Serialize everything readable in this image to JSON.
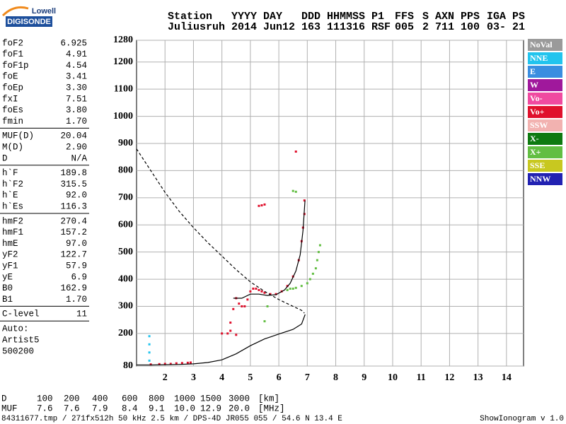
{
  "logo": {
    "line1": "Lowell",
    "line2": "DIGISONDE"
  },
  "header": {
    "rows": [
      [
        "Station",
        "YYYY",
        "DAY",
        "DDD",
        "HHMMSS",
        "P1",
        "FFS",
        "S",
        "AXN",
        "PPS",
        "IGA",
        "PS"
      ],
      [
        "Juliusruh",
        "2014",
        "Jun12",
        "163",
        "111316",
        "RSF",
        "005",
        "2",
        "711",
        "100",
        "03-",
        "21"
      ]
    ]
  },
  "params": {
    "groups": [
      [
        [
          "foF2",
          "6.925"
        ],
        [
          "foF1",
          "4.91"
        ],
        [
          "foF1p",
          "4.54"
        ],
        [
          "foE",
          "3.41"
        ],
        [
          "foEp",
          "3.30"
        ],
        [
          "fxI",
          "7.51"
        ],
        [
          "foEs",
          "3.80"
        ],
        [
          "fmin",
          "1.70"
        ]
      ],
      [
        [
          "MUF(D)",
          "20.04"
        ],
        [
          "M(D)",
          "2.90"
        ],
        [
          "D",
          "N/A"
        ]
      ],
      [
        [
          "h`F",
          "189.8"
        ],
        [
          "h`F2",
          "315.5"
        ],
        [
          "h`E",
          "92.0"
        ],
        [
          "h`Es",
          "116.3"
        ]
      ],
      [
        [
          "hmF2",
          "270.4"
        ],
        [
          "hmF1",
          "157.2"
        ],
        [
          "hmE",
          "97.0"
        ],
        [
          "yF2",
          "122.7"
        ],
        [
          "yF1",
          "57.9"
        ],
        [
          "yE",
          "6.9"
        ],
        [
          "B0",
          "162.9"
        ],
        [
          "B1",
          "1.70"
        ]
      ],
      [
        [
          "C-level",
          "11"
        ]
      ]
    ],
    "auto": [
      "Auto:",
      "Artist5",
      "500200"
    ]
  },
  "chart_data": {
    "type": "scatter",
    "xlim": [
      1,
      14.6
    ],
    "ylim": [
      80,
      1280
    ],
    "xticks": [
      2,
      3,
      4,
      5,
      6,
      7,
      8,
      9,
      10,
      11,
      12,
      13,
      14
    ],
    "yticks": [
      80,
      200,
      300,
      400,
      500,
      600,
      700,
      800,
      900,
      1000,
      1100,
      1200,
      1280
    ],
    "grid": true,
    "legend": [
      {
        "name": "NoVal",
        "color": "#9a9a9a"
      },
      {
        "name": "NNE",
        "color": "#22c4ee"
      },
      {
        "name": "E",
        "color": "#3a8ee0"
      },
      {
        "name": "W",
        "color": "#a0189c"
      },
      {
        "name": "Vo-",
        "color": "#f04aa0"
      },
      {
        "name": "Vo+",
        "color": "#e0102c"
      },
      {
        "name": "SSW",
        "color": "#f2b2b0"
      },
      {
        "name": "X-",
        "color": "#0e7a10"
      },
      {
        "name": "X+",
        "color": "#62be42"
      },
      {
        "name": "SSE",
        "color": "#c8c820"
      },
      {
        "name": "NNW",
        "color": "#2222b2"
      }
    ],
    "series": [
      {
        "style": "points",
        "color": "#e0102c",
        "x": [
          1.5,
          1.8,
          2.0,
          2.2,
          2.4,
          2.6,
          2.8,
          2.9,
          4.0,
          4.2,
          4.3,
          4.4,
          4.5,
          4.6,
          4.7,
          4.8,
          4.9,
          5.0,
          5.1,
          5.2,
          5.3,
          5.4,
          5.5,
          5.7,
          5.9,
          6.1,
          6.3,
          6.5,
          6.7,
          6.8,
          6.85,
          6.9,
          6.9,
          5.3,
          5.4,
          5.5,
          6.6,
          4.3,
          4.5
        ],
        "values": [
          86,
          87,
          88,
          88,
          90,
          91,
          92,
          93,
          200,
          200,
          210,
          290,
          330,
          310,
          300,
          300,
          325,
          355,
          365,
          365,
          360,
          355,
          350,
          345,
          345,
          355,
          375,
          410,
          470,
          540,
          590,
          640,
          690,
          670,
          672,
          675,
          870,
          240,
          195
        ]
      },
      {
        "style": "points",
        "color": "#62be42",
        "x": [
          6.3,
          6.4,
          6.5,
          6.6,
          6.8,
          7.0,
          7.1,
          7.2,
          7.3,
          7.35,
          7.4,
          7.45,
          6.5,
          6.6,
          5.6,
          5.5
        ],
        "values": [
          360,
          365,
          365,
          368,
          375,
          385,
          400,
          420,
          440,
          470,
          500,
          525,
          725,
          722,
          300,
          245
        ]
      },
      {
        "style": "points",
        "color": "#22c4ee",
        "x": [
          1.45,
          1.45,
          1.45,
          1.45
        ],
        "values": [
          100,
          130,
          160,
          190
        ]
      },
      {
        "style": "line",
        "color": "#000000",
        "x": [
          4.4,
          4.7,
          5.0,
          5.3,
          5.6,
          5.9,
          6.2,
          6.4,
          6.6,
          6.75,
          6.85,
          6.92
        ],
        "values": [
          330,
          330,
          345,
          345,
          340,
          343,
          360,
          385,
          430,
          490,
          580,
          690
        ]
      },
      {
        "style": "line",
        "color": "#000000",
        "x": [
          1.0,
          1.5,
          2.0,
          2.5,
          3.0,
          3.5,
          4.0,
          4.5,
          5.0,
          5.5,
          6.0,
          6.5,
          6.8,
          6.925
        ],
        "values": [
          84,
          84,
          85,
          86,
          88,
          93,
          103,
          125,
          155,
          180,
          198,
          215,
          235,
          270
        ]
      },
      {
        "style": "dashed",
        "color": "#000000",
        "x": [
          1.0,
          1.5,
          2.0,
          2.5,
          3.0,
          3.5,
          4.0,
          4.5,
          5.0,
          5.5,
          6.0,
          6.5,
          6.8,
          6.9
        ],
        "values": [
          880,
          800,
          720,
          650,
          590,
          535,
          485,
          435,
          390,
          355,
          325,
          300,
          285,
          275
        ]
      }
    ]
  },
  "footer": {
    "rows": [
      [
        "D",
        "100",
        "200",
        "400",
        "600",
        "800",
        "1000",
        "1500",
        "3000",
        "[km]"
      ],
      [
        "MUF",
        "7.6",
        "7.6",
        "7.9",
        "8.4",
        "9.1",
        "10.0",
        "12.9",
        "20.0",
        "[MHz]"
      ]
    ],
    "file": "84311677.tmp / 271fx512h 50 kHz 2.5 km / DPS-4D JR055 055 / 54.6 N 13.4 E",
    "version": "ShowIonogram v 1.0"
  }
}
